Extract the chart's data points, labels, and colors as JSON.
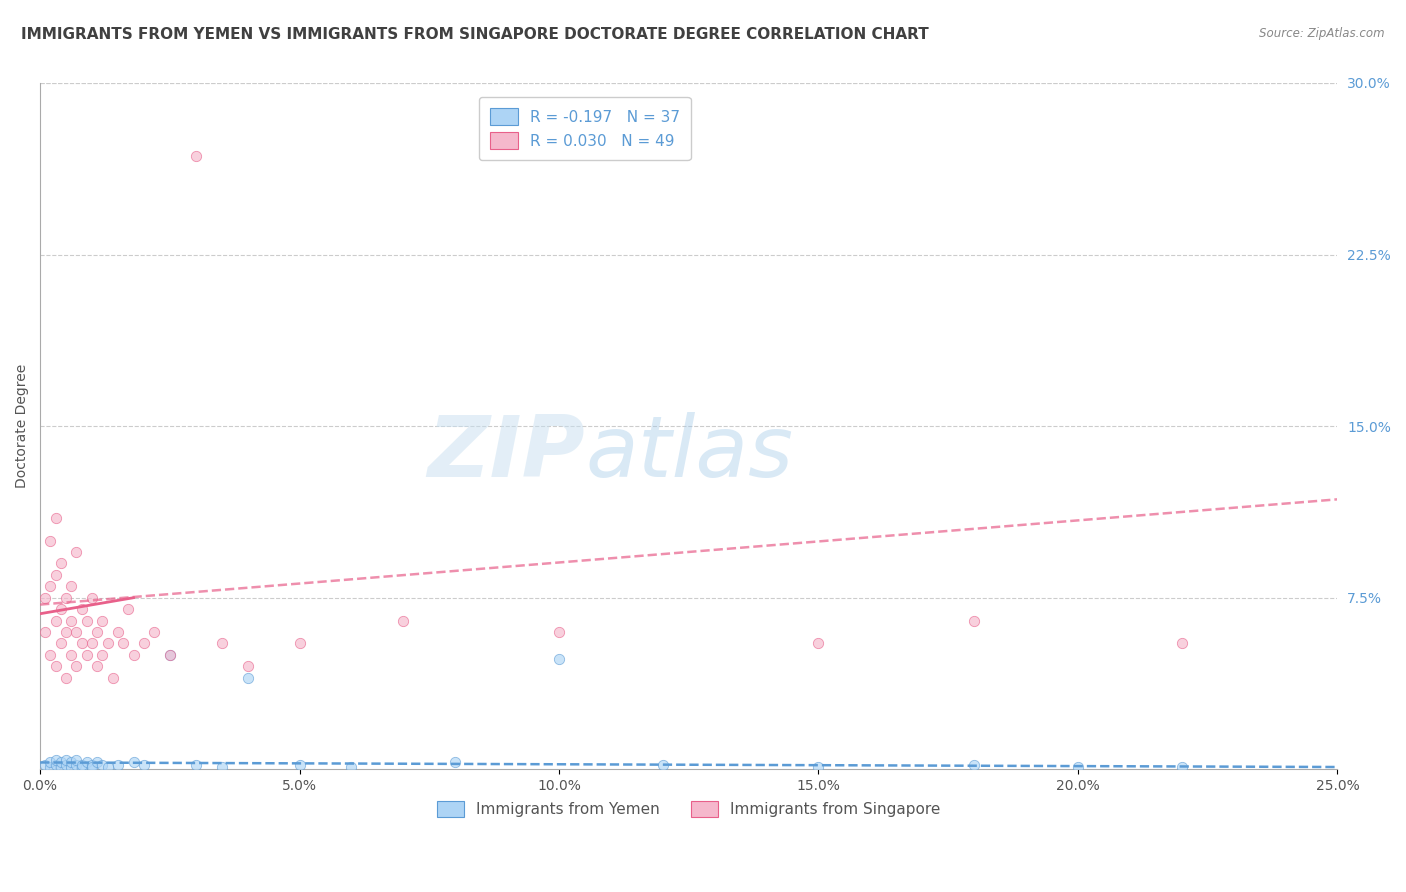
{
  "title": "IMMIGRANTS FROM YEMEN VS IMMIGRANTS FROM SINGAPORE DOCTORATE DEGREE CORRELATION CHART",
  "source": "Source: ZipAtlas.com",
  "ylabel": "Doctorate Degree",
  "xlim": [
    0.0,
    0.25
  ],
  "ylim": [
    0.0,
    0.3
  ],
  "xtick_labels": [
    "0.0%",
    "5.0%",
    "10.0%",
    "15.0%",
    "20.0%",
    "25.0%"
  ],
  "xtick_vals": [
    0.0,
    0.05,
    0.1,
    0.15,
    0.2,
    0.25
  ],
  "ytick_labels_right": [
    "30.0%",
    "22.5%",
    "15.0%",
    "7.5%"
  ],
  "ytick_vals": [
    0.3,
    0.225,
    0.15,
    0.075
  ],
  "legend_entry1_label": "R = -0.197   N = 37",
  "legend_entry2_label": "R = 0.030   N = 49",
  "legend_color1": "#add4f5",
  "legend_color2": "#f5b8cc",
  "series1_name": "Immigrants from Yemen",
  "series2_name": "Immigrants from Singapore",
  "scatter1_color": "#add4f5",
  "scatter2_color": "#f5b8cc",
  "line1_color": "#5b9bd5",
  "line2_color": "#e8608a",
  "background_color": "#ffffff",
  "grid_color": "#cccccc",
  "title_color": "#404040",
  "axis_label_color": "#555555",
  "tick_label_color_right": "#5b9bd5",
  "watermark_zip": "ZIP",
  "watermark_atlas": "atlas",
  "series1_x": [
    0.001,
    0.002,
    0.002,
    0.003,
    0.003,
    0.004,
    0.004,
    0.005,
    0.005,
    0.006,
    0.006,
    0.007,
    0.007,
    0.008,
    0.008,
    0.009,
    0.01,
    0.01,
    0.011,
    0.012,
    0.013,
    0.015,
    0.018,
    0.02,
    0.025,
    0.03,
    0.035,
    0.04,
    0.05,
    0.06,
    0.08,
    0.1,
    0.12,
    0.15,
    0.18,
    0.2,
    0.22
  ],
  "series1_y": [
    0.002,
    0.001,
    0.003,
    0.002,
    0.004,
    0.001,
    0.003,
    0.002,
    0.004,
    0.001,
    0.003,
    0.002,
    0.004,
    0.001,
    0.002,
    0.003,
    0.002,
    0.001,
    0.003,
    0.002,
    0.001,
    0.002,
    0.003,
    0.002,
    0.05,
    0.002,
    0.001,
    0.04,
    0.002,
    0.001,
    0.003,
    0.048,
    0.002,
    0.001,
    0.002,
    0.001,
    0.001
  ],
  "series2_x": [
    0.001,
    0.001,
    0.002,
    0.002,
    0.002,
    0.003,
    0.003,
    0.003,
    0.003,
    0.004,
    0.004,
    0.004,
    0.005,
    0.005,
    0.005,
    0.006,
    0.006,
    0.006,
    0.007,
    0.007,
    0.007,
    0.008,
    0.008,
    0.009,
    0.009,
    0.01,
    0.01,
    0.011,
    0.011,
    0.012,
    0.012,
    0.013,
    0.014,
    0.015,
    0.016,
    0.017,
    0.018,
    0.02,
    0.022,
    0.025,
    0.03,
    0.035,
    0.04,
    0.05,
    0.07,
    0.1,
    0.15,
    0.18,
    0.22
  ],
  "series2_y": [
    0.06,
    0.075,
    0.05,
    0.08,
    0.1,
    0.045,
    0.065,
    0.085,
    0.11,
    0.055,
    0.07,
    0.09,
    0.04,
    0.06,
    0.075,
    0.05,
    0.065,
    0.08,
    0.045,
    0.06,
    0.095,
    0.055,
    0.07,
    0.05,
    0.065,
    0.075,
    0.055,
    0.045,
    0.06,
    0.05,
    0.065,
    0.055,
    0.04,
    0.06,
    0.055,
    0.07,
    0.05,
    0.055,
    0.06,
    0.05,
    0.268,
    0.055,
    0.045,
    0.055,
    0.065,
    0.06,
    0.055,
    0.065,
    0.055
  ],
  "trend2_x0": 0.0,
  "trend2_y0": 0.072,
  "trend2_x1": 0.25,
  "trend2_y1": 0.118,
  "trend1_x0": 0.0,
  "trend1_y0": 0.003,
  "trend1_x1": 0.25,
  "trend1_y1": 0.001,
  "title_fontsize": 11,
  "axis_label_fontsize": 10,
  "tick_fontsize": 10,
  "scatter_size": 55,
  "scatter_alpha": 0.65,
  "line_width": 1.8
}
